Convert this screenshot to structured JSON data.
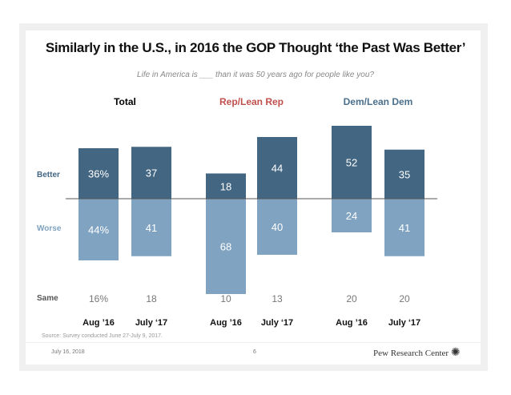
{
  "chart_data": {
    "type": "bar",
    "title": "Similarly in the U.S., in 2016 the GOP Thought ‘the Past Was Better’",
    "subtitle": "Life in America is ___ than it was 50 years ago for people like you?",
    "groups": [
      "Total",
      "Rep/Lean Rep",
      "Dem/Lean Dem"
    ],
    "group_colors": [
      "#111111",
      "#c0504d",
      "#4a6f8c"
    ],
    "categories": [
      "Aug ’16",
      "July ‘17",
      "Aug ’16",
      "July ‘17",
      "Aug ’16",
      "July ‘17"
    ],
    "series": [
      {
        "name": "Better",
        "values": [
          36,
          37,
          18,
          44,
          52,
          35
        ],
        "labels": [
          "36%",
          "37",
          "18",
          "44",
          "52",
          "35"
        ],
        "color": "#436683"
      },
      {
        "name": "Worse",
        "values": [
          44,
          41,
          68,
          40,
          24,
          41
        ],
        "labels": [
          "44%",
          "41",
          "68",
          "40",
          "24",
          "41"
        ],
        "color": "#7fa3c0"
      },
      {
        "name": "Same",
        "values": [
          16,
          18,
          10,
          13,
          20,
          20
        ],
        "labels": [
          "16%",
          "18",
          "10",
          "13",
          "20",
          "20"
        ]
      }
    ],
    "source": "Source: Survey conducted June 27-July 9, 2017."
  },
  "footer": {
    "date": "July 16, 2018",
    "page": "6",
    "brand": "Pew Research Center"
  }
}
